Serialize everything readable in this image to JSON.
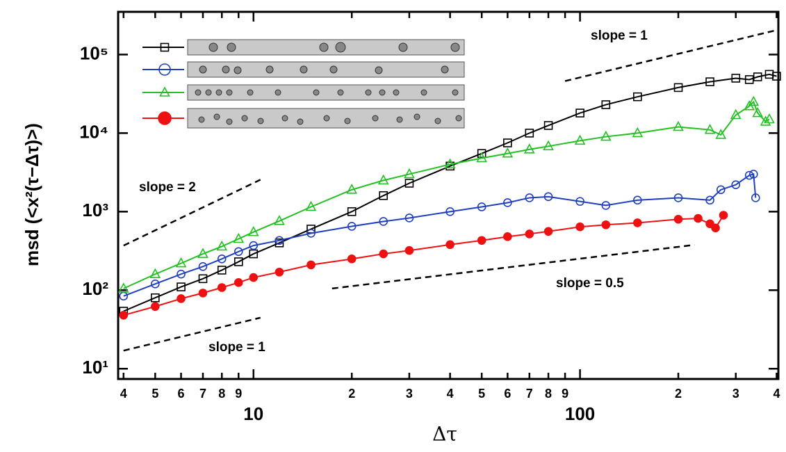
{
  "chart_data": {
    "type": "scatter",
    "x_label": "Δτ",
    "y_label": "msd (<x²(τ−Δτ)>)",
    "log_x": true,
    "log_y": true,
    "xlim": [
      3.85,
      405
    ],
    "ylim": [
      7.4,
      350000
    ],
    "xticks": [
      {
        "value": 4,
        "label": "4"
      },
      {
        "value": 5,
        "label": "5"
      },
      {
        "value": 6,
        "label": "6"
      },
      {
        "value": 7,
        "label": "7"
      },
      {
        "value": 8,
        "label": "8"
      },
      {
        "value": 9,
        "label": "9"
      },
      10,
      {
        "value": 20,
        "label": "2"
      },
      {
        "value": 30,
        "label": "3"
      },
      {
        "value": 40,
        "label": "4"
      },
      {
        "value": 50,
        "label": "5"
      },
      {
        "value": 60,
        "label": "6"
      },
      {
        "value": 70,
        "label": "7"
      },
      {
        "value": 80,
        "label": "8"
      },
      {
        "value": 90,
        "label": "9"
      },
      100,
      {
        "value": 200,
        "label": "2"
      },
      {
        "value": 300,
        "label": "3"
      },
      {
        "value": 400,
        "label": "4"
      }
    ],
    "yticks": [
      {
        "value": 10,
        "label": "10¹"
      },
      {
        "value": 100,
        "label": "10²"
      },
      {
        "value": 1000,
        "label": "10³"
      },
      {
        "value": 10000,
        "label": "10⁴"
      },
      {
        "value": 100000,
        "label": "10⁵"
      }
    ],
    "legend": "upper left",
    "series": [
      {
        "color": "#000000",
        "marker": "square",
        "filled": false,
        "x": [
          4,
          5,
          6,
          7,
          8,
          9,
          10,
          12,
          15,
          20,
          25,
          30,
          40,
          50,
          60,
          70,
          80,
          100,
          120,
          150,
          200,
          250,
          300,
          330,
          350,
          380,
          400
        ],
        "values": [
          54,
          80,
          110,
          140,
          180,
          230,
          290,
          400,
          600,
          1000,
          1600,
          2300,
          3800,
          5500,
          7500,
          10000,
          12500,
          18000,
          23000,
          29000,
          38000,
          45000,
          50000,
          48000,
          52000,
          56000,
          53000
        ]
      },
      {
        "color": "#1f3fbf",
        "marker": "circle",
        "filled": false,
        "x": [
          4,
          5,
          6,
          7,
          8,
          9,
          10,
          12,
          15,
          20,
          25,
          30,
          40,
          50,
          60,
          70,
          80,
          100,
          120,
          150,
          200,
          250,
          270,
          300,
          330,
          340,
          345
        ],
        "values": [
          84,
          120,
          160,
          200,
          250,
          310,
          370,
          430,
          530,
          650,
          750,
          830,
          1000,
          1150,
          1300,
          1500,
          1550,
          1350,
          1200,
          1400,
          1500,
          1400,
          1900,
          2200,
          2900,
          3000,
          1500
        ]
      },
      {
        "color": "#22c022",
        "marker": "triangle",
        "filled": false,
        "x": [
          4,
          5,
          6,
          7,
          8,
          9,
          10,
          12,
          15,
          20,
          25,
          30,
          40,
          50,
          60,
          70,
          80,
          100,
          120,
          150,
          200,
          250,
          270,
          300,
          330,
          340,
          350,
          370,
          380
        ],
        "values": [
          105,
          160,
          220,
          290,
          360,
          450,
          550,
          760,
          1150,
          1900,
          2500,
          3000,
          4000,
          4800,
          5500,
          6200,
          6800,
          8000,
          9000,
          10000,
          12000,
          11000,
          9500,
          17000,
          22000,
          25000,
          18000,
          14000,
          15000
        ]
      },
      {
        "color": "#ee1111",
        "marker": "circle",
        "filled": true,
        "x": [
          4,
          5,
          6,
          7,
          8,
          9,
          10,
          12,
          15,
          20,
          25,
          30,
          40,
          50,
          60,
          70,
          80,
          100,
          120,
          150,
          200,
          230,
          250,
          260,
          275
        ],
        "values": [
          48,
          62,
          78,
          92,
          108,
          125,
          145,
          170,
          210,
          250,
          290,
          320,
          380,
          430,
          480,
          520,
          560,
          640,
          680,
          720,
          800,
          820,
          700,
          620,
          900
        ]
      }
    ],
    "reference_lines": [
      {
        "label": "slope = 2",
        "x": [
          4,
          10.5
        ],
        "y": [
          370,
          2550
        ]
      },
      {
        "label": "slope = 1",
        "x": [
          4,
          10.5
        ],
        "y": [
          17,
          44.6
        ]
      },
      {
        "label": "slope = 0.5",
        "x": [
          17.4,
          224
        ],
        "y": [
          105,
          377
        ]
      },
      {
        "label": "slope = 1",
        "x": [
          90,
          395
        ],
        "y": [
          46000,
          202000
        ]
      }
    ]
  }
}
